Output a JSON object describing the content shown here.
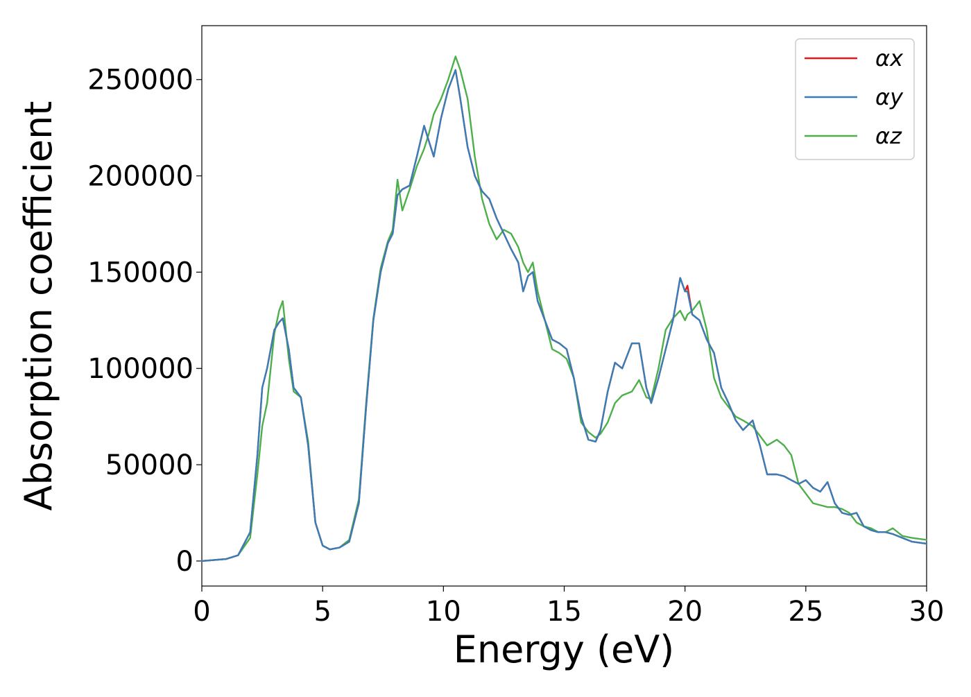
{
  "chart_data": {
    "type": "line",
    "title": "",
    "xlabel": "Energy (eV)",
    "ylabel": "Absorption coefficient",
    "xlim": [
      0,
      30
    ],
    "ylim": [
      -13000,
      278000
    ],
    "xticks": [
      0,
      5,
      10,
      15,
      20,
      25,
      30
    ],
    "yticks": [
      0,
      50000,
      100000,
      150000,
      200000,
      250000
    ],
    "grid": false,
    "legend_position": "top-right",
    "series": [
      {
        "name": "αx",
        "color": "#e41a1c",
        "x": [
          0,
          1,
          1.5,
          2,
          2.3,
          2.5,
          2.7,
          3,
          3.2,
          3.35,
          3.6,
          3.8,
          4.1,
          4.4,
          4.7,
          5,
          5.3,
          5.7,
          6.1,
          6.5,
          6.8,
          7.1,
          7.4,
          7.7,
          7.9,
          8.1,
          8.3,
          8.6,
          8.9,
          9.2,
          9.4,
          9.6,
          9.9,
          10.2,
          10.5,
          10.7,
          11,
          11.3,
          11.6,
          11.9,
          12.2,
          12.5,
          12.8,
          13.1,
          13.3,
          13.5,
          13.7,
          13.9,
          14.2,
          14.5,
          14.8,
          15.1,
          15.4,
          15.7,
          16,
          16.3,
          16.5,
          16.8,
          17.1,
          17.4,
          17.8,
          18.1,
          18.4,
          18.6,
          18.9,
          19.2,
          19.5,
          19.8,
          20,
          20.1,
          20.3,
          20.6,
          20.9,
          21.2,
          21.5,
          21.8,
          22.1,
          22.4,
          22.8,
          23.1,
          23.4,
          23.8,
          24.1,
          24.4,
          24.7,
          25,
          25.3,
          25.6,
          25.9,
          26.2,
          26.5,
          26.8,
          27.1,
          27.4,
          27.7,
          28,
          28.3,
          28.6,
          29,
          29.4,
          30
        ],
        "y": [
          0,
          1000,
          3000,
          15000,
          55000,
          90000,
          100000,
          120000,
          124000,
          126000,
          110000,
          90000,
          85000,
          60000,
          20000,
          8000,
          6000,
          7000,
          10000,
          30000,
          80000,
          125000,
          150000,
          165000,
          170000,
          190000,
          193000,
          195000,
          210000,
          226000,
          218000,
          210000,
          230000,
          245000,
          255000,
          240000,
          215000,
          200000,
          192000,
          188000,
          178000,
          170000,
          162000,
          155000,
          140000,
          148000,
          150000,
          135000,
          125000,
          115000,
          113000,
          110000,
          95000,
          75000,
          63000,
          62000,
          68000,
          88000,
          103000,
          100000,
          113000,
          113000,
          90000,
          82000,
          95000,
          110000,
          125000,
          147000,
          140000,
          143000,
          128000,
          125000,
          115000,
          108000,
          90000,
          82000,
          73000,
          68000,
          73000,
          60000,
          45000,
          45000,
          44000,
          42000,
          40000,
          42000,
          38000,
          36000,
          41000,
          30000,
          25000,
          24000,
          25000,
          18000,
          16000,
          15000,
          15000,
          14000,
          12000,
          10000,
          9000
        ]
      },
      {
        "name": "αy",
        "color": "#377eb8",
        "x": [
          0,
          1,
          1.5,
          2,
          2.3,
          2.5,
          2.7,
          3,
          3.2,
          3.35,
          3.6,
          3.8,
          4.1,
          4.4,
          4.7,
          5,
          5.3,
          5.7,
          6.1,
          6.5,
          6.8,
          7.1,
          7.4,
          7.7,
          7.9,
          8.1,
          8.3,
          8.6,
          8.9,
          9.2,
          9.4,
          9.6,
          9.9,
          10.2,
          10.5,
          10.7,
          11,
          11.3,
          11.6,
          11.9,
          12.2,
          12.5,
          12.8,
          13.1,
          13.3,
          13.5,
          13.7,
          13.9,
          14.2,
          14.5,
          14.8,
          15.1,
          15.4,
          15.7,
          16,
          16.3,
          16.5,
          16.8,
          17.1,
          17.4,
          17.8,
          18.1,
          18.4,
          18.6,
          18.9,
          19.2,
          19.5,
          19.8,
          20,
          20.1,
          20.3,
          20.6,
          20.9,
          21.2,
          21.5,
          21.8,
          22.1,
          22.4,
          22.8,
          23.1,
          23.4,
          23.8,
          24.1,
          24.4,
          24.7,
          25,
          25.3,
          25.6,
          25.9,
          26.2,
          26.5,
          26.8,
          27.1,
          27.4,
          27.7,
          28,
          28.3,
          28.6,
          29,
          29.4,
          30
        ],
        "y": [
          0,
          1000,
          3000,
          15000,
          55000,
          90000,
          100000,
          120000,
          124000,
          126000,
          110000,
          90000,
          85000,
          60000,
          20000,
          8000,
          6000,
          7000,
          10000,
          30000,
          80000,
          125000,
          150000,
          165000,
          170000,
          190000,
          193000,
          195000,
          210000,
          226000,
          218000,
          210000,
          230000,
          245000,
          255000,
          240000,
          215000,
          200000,
          192000,
          188000,
          178000,
          170000,
          162000,
          155000,
          140000,
          148000,
          150000,
          135000,
          125000,
          115000,
          113000,
          110000,
          95000,
          75000,
          63000,
          62000,
          68000,
          88000,
          103000,
          100000,
          113000,
          113000,
          90000,
          82000,
          95000,
          110000,
          125000,
          147000,
          140000,
          140000,
          128000,
          125000,
          115000,
          108000,
          90000,
          82000,
          73000,
          68000,
          73000,
          60000,
          45000,
          45000,
          44000,
          42000,
          40000,
          42000,
          38000,
          36000,
          41000,
          30000,
          25000,
          24000,
          25000,
          18000,
          16000,
          15000,
          15000,
          14000,
          12000,
          10000,
          9000
        ]
      },
      {
        "name": "αz",
        "color": "#4daf4a",
        "x": [
          0,
          1,
          1.5,
          2,
          2.3,
          2.5,
          2.7,
          3,
          3.2,
          3.35,
          3.6,
          3.8,
          4.1,
          4.4,
          4.7,
          5,
          5.3,
          5.7,
          6.1,
          6.5,
          6.8,
          7.1,
          7.4,
          7.7,
          7.9,
          8.1,
          8.3,
          8.6,
          8.9,
          9.2,
          9.4,
          9.6,
          9.9,
          10.2,
          10.5,
          10.7,
          11,
          11.3,
          11.6,
          11.9,
          12.2,
          12.5,
          12.8,
          13.1,
          13.3,
          13.5,
          13.7,
          13.9,
          14.2,
          14.5,
          14.8,
          15.1,
          15.4,
          15.7,
          16,
          16.3,
          16.5,
          16.8,
          17.1,
          17.4,
          17.8,
          18.1,
          18.4,
          18.6,
          18.9,
          19.2,
          19.5,
          19.8,
          20,
          20.1,
          20.3,
          20.6,
          20.9,
          21.2,
          21.5,
          21.8,
          22.1,
          22.4,
          22.8,
          23.1,
          23.4,
          23.8,
          24.1,
          24.4,
          24.7,
          25,
          25.3,
          25.6,
          25.9,
          26.2,
          26.5,
          26.8,
          27.1,
          27.4,
          27.7,
          28,
          28.3,
          28.6,
          29,
          29.4,
          30
        ],
        "y": [
          0,
          1000,
          3000,
          12000,
          45000,
          70000,
          82000,
          118000,
          130000,
          135000,
          105000,
          88000,
          85000,
          62000,
          20000,
          8000,
          6000,
          7000,
          11000,
          32000,
          82000,
          126000,
          152000,
          166000,
          172000,
          198000,
          182000,
          193000,
          205000,
          214000,
          222000,
          232000,
          240000,
          250000,
          262000,
          255000,
          240000,
          210000,
          188000,
          175000,
          167000,
          172000,
          170000,
          163000,
          155000,
          150000,
          155000,
          140000,
          125000,
          110000,
          108000,
          105000,
          95000,
          72000,
          67000,
          64000,
          66000,
          72000,
          82000,
          86000,
          88000,
          94000,
          85000,
          84000,
          100000,
          120000,
          126000,
          130000,
          125000,
          128000,
          130000,
          135000,
          120000,
          95000,
          85000,
          80000,
          75000,
          73000,
          70000,
          65000,
          60000,
          63000,
          60000,
          55000,
          40000,
          35000,
          30000,
          29000,
          28000,
          28000,
          27000,
          25000,
          20000,
          18000,
          17000,
          15000,
          15000,
          17000,
          13000,
          12000,
          11000
        ]
      }
    ]
  }
}
